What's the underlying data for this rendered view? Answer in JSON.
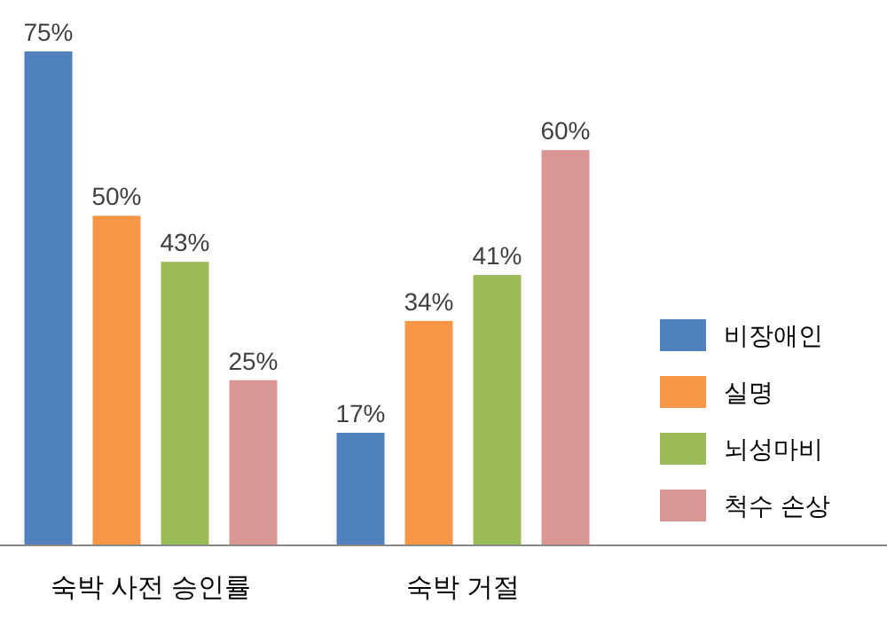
{
  "chart_data": {
    "type": "bar",
    "categories": [
      "숙박 사전 승인률",
      "숙박 거절"
    ],
    "legend": "right",
    "series": [
      {
        "name": "비장애인",
        "color": "#4f81bd",
        "values": [
          75,
          17
        ],
        "value_labels": [
          "75%",
          "17%"
        ]
      },
      {
        "name": "실명",
        "color": "#f79646",
        "values": [
          50,
          34
        ],
        "value_labels": [
          "50%",
          "34%"
        ]
      },
      {
        "name": "뇌성마비",
        "color": "#9bbb59",
        "values": [
          43,
          41
        ],
        "value_labels": [
          "43%",
          "41%"
        ]
      },
      {
        "name": "척수 손상",
        "color": "#d99694",
        "values": [
          25,
          60
        ],
        "value_labels": [
          "25%",
          "60%"
        ]
      }
    ]
  }
}
